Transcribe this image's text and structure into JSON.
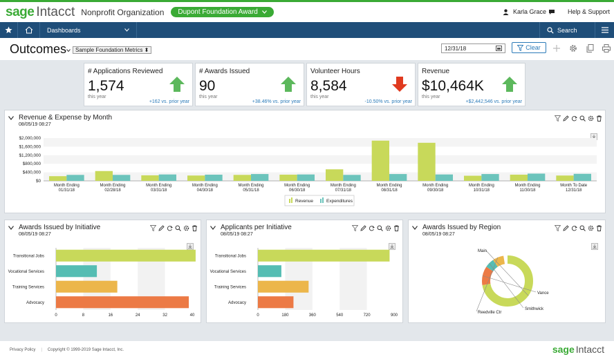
{
  "app": {
    "logo_brand": "sage",
    "logo_product": "Intacct",
    "org": "Nonprofit Organization",
    "entity": "Dupont Foundation Award"
  },
  "user": {
    "name": "Karla Grace",
    "help": "Help & Support"
  },
  "nav": {
    "dashboards": "Dashboards",
    "search": "Search"
  },
  "page": {
    "title": "Outcomes",
    "dashboard_select": "Sample Foundation Metrics",
    "date": "12/31/18",
    "clear": "Clear"
  },
  "kpis": [
    {
      "title": "# Applications Reviewed",
      "value": "1,574",
      "sub": "this year",
      "delta": "+162 vs. prior year",
      "trend": "up"
    },
    {
      "title": "# Awards Issued",
      "value": "90",
      "sub": "this year",
      "delta": "+38.46% vs. prior year",
      "trend": "up"
    },
    {
      "title": "Volunteer Hours",
      "value": "8,584",
      "sub": "this year",
      "delta": "-10.50% vs. prior year",
      "trend": "down"
    },
    {
      "title": "Revenue",
      "value": "$10,464K",
      "sub": "this year",
      "delta": "+$2,442,546 vs. prior year",
      "trend": "up"
    }
  ],
  "colors": {
    "green": "#3aaa35",
    "navy": "#1f4e79",
    "revenue": "#c8d95a",
    "expenditures": "#6cc4bc",
    "teal": "#55bdb3",
    "orange": "#ec7a45",
    "amber": "#ecb64b",
    "lime": "#c8d95a",
    "red": "#e03a1f",
    "up_arrow": "#5cb85c"
  },
  "panels": {
    "rev": {
      "title": "Revenue & Expense by Month",
      "date": "08/05/19 08:27"
    },
    "awards": {
      "title": "Awards Issued by Initiative",
      "date": "08/05/19 08:27"
    },
    "apps": {
      "title": "Applicants per Initiative",
      "date": "08/05/19 08:27"
    },
    "region": {
      "title": "Awards Issued by Region",
      "date": "08/05/19 08:27"
    }
  },
  "footer": {
    "privacy": "Privacy Policy",
    "copyright": "Copyright © 1999-2019 Sage Intacct, Inc.",
    "brand": "sage",
    "product": "Intacct"
  },
  "chart_data": [
    {
      "type": "bar",
      "title": "Revenue & Expense by Month",
      "categories": [
        "Month Ending\n01/31/18",
        "Month Ending\n02/28/18",
        "Month Ending\n03/31/18",
        "Month Ending\n04/30/18",
        "Month Ending\n05/31/18",
        "Month Ending\n06/30/18",
        "Month Ending\n07/31/18",
        "Month Ending\n08/31/18",
        "Month Ending\n09/30/18",
        "Month Ending\n10/31/18",
        "Month Ending\n11/30/18",
        "Month To Date\n12/31/18"
      ],
      "series": [
        {
          "name": "Revenue",
          "values": [
            220000,
            460000,
            260000,
            250000,
            280000,
            290000,
            540000,
            1880000,
            1780000,
            240000,
            290000,
            250000
          ]
        },
        {
          "name": "Expenditures",
          "values": [
            280000,
            280000,
            300000,
            290000,
            320000,
            300000,
            280000,
            320000,
            300000,
            320000,
            340000,
            330000
          ]
        }
      ],
      "yticks": [
        "$2,000,000",
        "$1,600,000",
        "$1,200,000",
        "$800,000",
        "$400,000",
        "$0"
      ],
      "ylim": [
        0,
        2000000
      ],
      "legend": "bottom"
    },
    {
      "type": "bar",
      "title": "Awards Issued by Initiative",
      "categories": [
        "Transitional Jobs",
        "Vocational Services",
        "Training Services",
        "Advocacy"
      ],
      "values": [
        41,
        12,
        18,
        39
      ],
      "xticks": [
        "0",
        "8",
        "16",
        "24",
        "32",
        "40"
      ],
      "xlim": [
        0,
        40
      ]
    },
    {
      "type": "bar",
      "title": "Applicants per Initiative",
      "categories": [
        "Transitional Jobs",
        "Vocational Services",
        "Training Services",
        "Advocacy"
      ],
      "values": [
        870,
        155,
        335,
        235
      ],
      "xticks": [
        "0",
        "180",
        "360",
        "540",
        "720",
        "900"
      ],
      "xlim": [
        0,
        900
      ]
    },
    {
      "type": "pie",
      "title": "Awards Issued by Region",
      "labels": [
        "Main",
        "Vance",
        "Smithwick",
        "Reedville Ctr"
      ],
      "values": [
        75,
        12,
        6,
        7
      ]
    }
  ]
}
